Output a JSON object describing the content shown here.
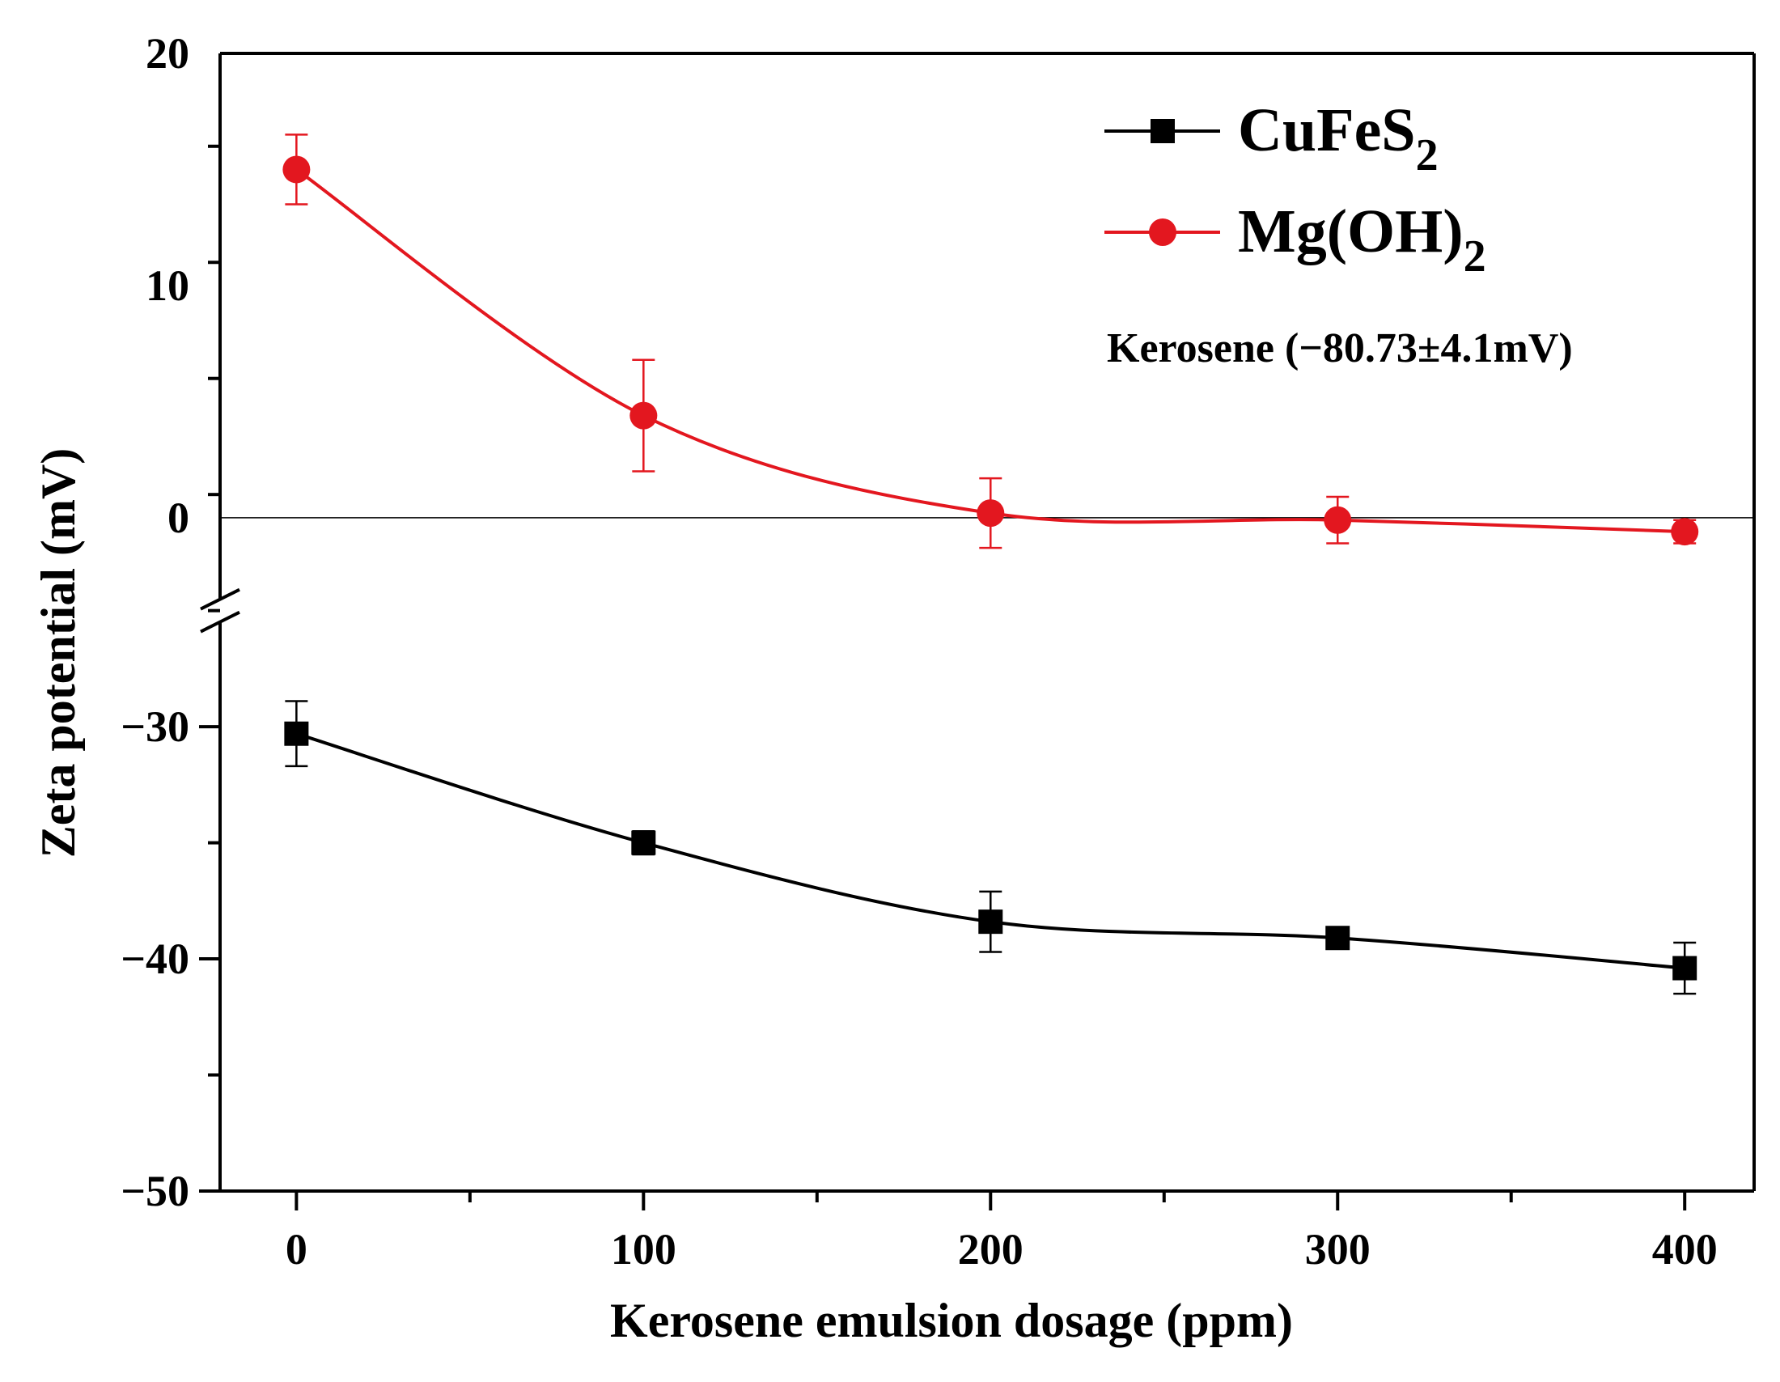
{
  "chart_data": {
    "type": "line",
    "xlabel": "Kerosene emulsion dosage (ppm)",
    "ylabel": "Zeta potential (mV)",
    "xlim": [
      -22,
      420
    ],
    "ylim": [
      -50,
      20
    ],
    "y_axis_break": [
      -25,
      -4
    ],
    "x_ticks": [
      0,
      100,
      200,
      300,
      400
    ],
    "x_tick_labels": [
      "0",
      "100",
      "200",
      "300",
      "400"
    ],
    "y_ticks": [
      -50,
      -40,
      -30,
      0,
      10,
      20
    ],
    "y_tick_labels": [
      "−50",
      "−40",
      "−30",
      "0",
      "10",
      "20"
    ],
    "zero_line": true,
    "legend_position": "top-right",
    "series": [
      {
        "name": "CuFeS",
        "name_sub": "2",
        "color": "#000000",
        "marker": "square",
        "x": [
          0,
          100,
          200,
          300,
          400
        ],
        "values": [
          -30.3,
          -35.0,
          -38.4,
          -39.1,
          -40.4
        ],
        "errors": [
          1.4,
          0.5,
          1.3,
          0.3,
          1.1
        ]
      },
      {
        "name": "Mg(OH)",
        "name_sub": "2",
        "color": "#e3171f",
        "marker": "circle",
        "x": [
          0,
          100,
          200,
          300,
          400
        ],
        "values": [
          15.0,
          4.4,
          0.2,
          -0.1,
          -0.6
        ],
        "errors": [
          1.5,
          2.4,
          1.5,
          1.0,
          0.5
        ]
      }
    ],
    "annotation": "Kerosene (−80.73±4.1mV)"
  }
}
